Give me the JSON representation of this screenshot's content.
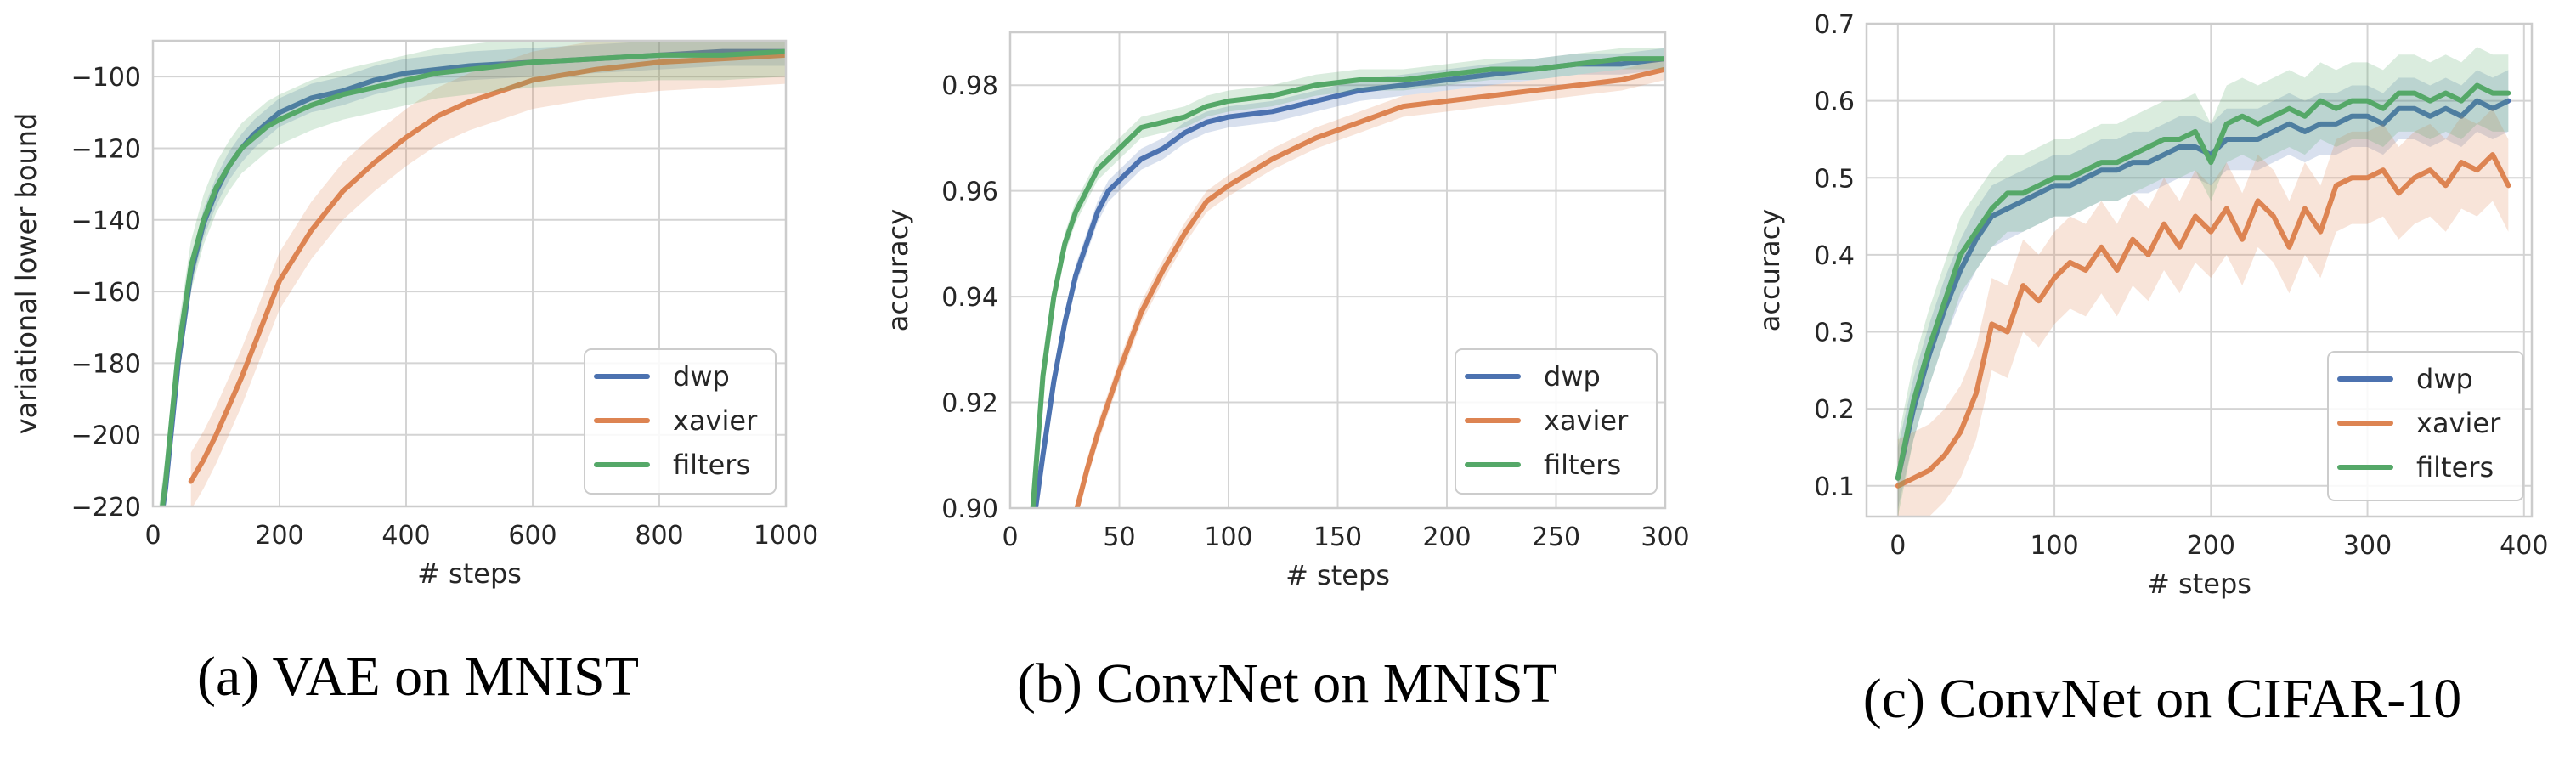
{
  "chart_data": [
    {
      "type": "line",
      "caption": "(a) VAE on MNIST",
      "xlabel": "# steps",
      "ylabel": "variational lower bound",
      "xlim": [
        0,
        1000
      ],
      "ylim": [
        -220,
        -90
      ],
      "xticks": [
        0,
        200,
        400,
        600,
        800,
        1000
      ],
      "yticks": [
        -220,
        -200,
        -180,
        -160,
        -140,
        -120,
        -100
      ],
      "grid": true,
      "legend_position": "bottom-right",
      "x": [
        0,
        20,
        40,
        60,
        80,
        100,
        120,
        140,
        160,
        180,
        200,
        250,
        300,
        350,
        400,
        450,
        500,
        600,
        700,
        800,
        900,
        1000
      ],
      "series": [
        {
          "name": "dwp",
          "color": "#4c72b0",
          "band": 4,
          "values": [
            -240,
            -215,
            -180,
            -155,
            -141,
            -132,
            -125,
            -120,
            -116,
            -113,
            -110,
            -106,
            -104,
            -101,
            -99,
            -98,
            -97,
            -96,
            -95,
            -94,
            -93,
            -93
          ]
        },
        {
          "name": "xavier",
          "color": "#dd8452",
          "band": 8,
          "values": [
            null,
            null,
            null,
            -213,
            -207,
            -200,
            -192,
            -184,
            -175,
            -166,
            -157,
            -143,
            -132,
            -124,
            -117,
            -111,
            -107,
            -101,
            -98,
            -96,
            -95,
            -94
          ]
        },
        {
          "name": "filters",
          "color": "#55a868",
          "band": 7,
          "values": [
            -240,
            -213,
            -177,
            -153,
            -140,
            -131,
            -125,
            -120,
            -117,
            -114,
            -112,
            -108,
            -105,
            -103,
            -101,
            -99,
            -98,
            -96,
            -95,
            -94,
            -94,
            -93
          ]
        }
      ]
    },
    {
      "type": "line",
      "caption": "(b) ConvNet on MNIST",
      "xlabel": "# steps",
      "ylabel": "accuracy",
      "xlim": [
        0,
        300
      ],
      "ylim": [
        0.9,
        0.99
      ],
      "xticks": [
        0,
        50,
        100,
        150,
        200,
        250,
        300
      ],
      "yticks": [
        0.9,
        0.92,
        0.94,
        0.96,
        0.98
      ],
      "ytick_labels": [
        "0.90",
        "0.92",
        "0.94",
        "0.96",
        "0.98"
      ],
      "grid": true,
      "legend_position": "bottom-right",
      "x": [
        0,
        10,
        15,
        20,
        25,
        30,
        35,
        40,
        45,
        50,
        60,
        70,
        80,
        90,
        100,
        120,
        140,
        160,
        180,
        200,
        220,
        240,
        260,
        280,
        300
      ],
      "series": [
        {
          "name": "dwp",
          "color": "#4c72b0",
          "band": 0.002,
          "values": [
            null,
            0.895,
            0.91,
            0.924,
            0.935,
            0.944,
            0.95,
            0.956,
            0.96,
            0.962,
            0.966,
            0.968,
            0.971,
            0.973,
            0.974,
            0.975,
            0.977,
            0.979,
            0.98,
            0.981,
            0.982,
            0.983,
            0.984,
            0.984,
            0.985
          ]
        },
        {
          "name": "xavier",
          "color": "#dd8452",
          "band": 0.002,
          "values": [
            null,
            null,
            null,
            null,
            null,
            0.899,
            0.907,
            0.914,
            0.92,
            0.926,
            0.937,
            0.945,
            0.952,
            0.958,
            0.961,
            0.966,
            0.97,
            0.973,
            0.976,
            0.977,
            0.978,
            0.979,
            0.98,
            0.981,
            0.983
          ]
        },
        {
          "name": "filters",
          "color": "#55a868",
          "band": 0.002,
          "values": [
            null,
            0.898,
            0.925,
            0.94,
            0.95,
            0.956,
            0.96,
            0.964,
            0.966,
            0.968,
            0.972,
            0.973,
            0.974,
            0.976,
            0.977,
            0.978,
            0.98,
            0.981,
            0.981,
            0.982,
            0.983,
            0.983,
            0.984,
            0.985,
            0.985
          ]
        }
      ]
    },
    {
      "type": "line",
      "caption": "(c) ConvNet on CIFAR-10",
      "xlabel": "# steps",
      "ylabel": "accuracy",
      "xlim": [
        -20,
        405
      ],
      "ylim": [
        0.06,
        0.7
      ],
      "xticks": [
        0,
        100,
        200,
        300,
        400
      ],
      "yticks": [
        0.1,
        0.2,
        0.3,
        0.4,
        0.5,
        0.6,
        0.7
      ],
      "grid": true,
      "legend_position": "bottom-right",
      "x": [
        0,
        10,
        20,
        30,
        40,
        50,
        60,
        70,
        80,
        90,
        100,
        110,
        120,
        130,
        140,
        150,
        160,
        170,
        180,
        190,
        200,
        210,
        220,
        230,
        240,
        250,
        260,
        270,
        280,
        290,
        300,
        310,
        320,
        330,
        340,
        350,
        360,
        370,
        380,
        390
      ],
      "series": [
        {
          "name": "dwp",
          "color": "#4c72b0",
          "band": 0.04,
          "values": [
            0.11,
            0.2,
            0.27,
            0.33,
            0.38,
            0.42,
            0.45,
            0.46,
            0.47,
            0.48,
            0.49,
            0.49,
            0.5,
            0.51,
            0.51,
            0.52,
            0.52,
            0.53,
            0.54,
            0.54,
            0.53,
            0.55,
            0.55,
            0.55,
            0.56,
            0.57,
            0.56,
            0.57,
            0.57,
            0.58,
            0.58,
            0.57,
            0.59,
            0.59,
            0.58,
            0.59,
            0.58,
            0.6,
            0.59,
            0.6
          ]
        },
        {
          "name": "xavier",
          "color": "#dd8452",
          "band": 0.06,
          "values": [
            0.1,
            0.11,
            0.12,
            0.14,
            0.17,
            0.22,
            0.31,
            0.3,
            0.36,
            0.34,
            0.37,
            0.39,
            0.38,
            0.41,
            0.38,
            0.42,
            0.4,
            0.44,
            0.41,
            0.45,
            0.43,
            0.46,
            0.42,
            0.47,
            0.45,
            0.41,
            0.46,
            0.43,
            0.49,
            0.5,
            0.5,
            0.51,
            0.48,
            0.5,
            0.51,
            0.49,
            0.52,
            0.51,
            0.53,
            0.49
          ]
        },
        {
          "name": "filters",
          "color": "#55a868",
          "band": 0.05,
          "values": [
            0.11,
            0.21,
            0.28,
            0.34,
            0.4,
            0.43,
            0.46,
            0.48,
            0.48,
            0.49,
            0.5,
            0.5,
            0.51,
            0.52,
            0.52,
            0.53,
            0.54,
            0.55,
            0.55,
            0.56,
            0.52,
            0.57,
            0.58,
            0.57,
            0.58,
            0.59,
            0.58,
            0.6,
            0.59,
            0.6,
            0.6,
            0.59,
            0.61,
            0.61,
            0.6,
            0.61,
            0.6,
            0.62,
            0.61,
            0.61
          ]
        }
      ]
    }
  ]
}
